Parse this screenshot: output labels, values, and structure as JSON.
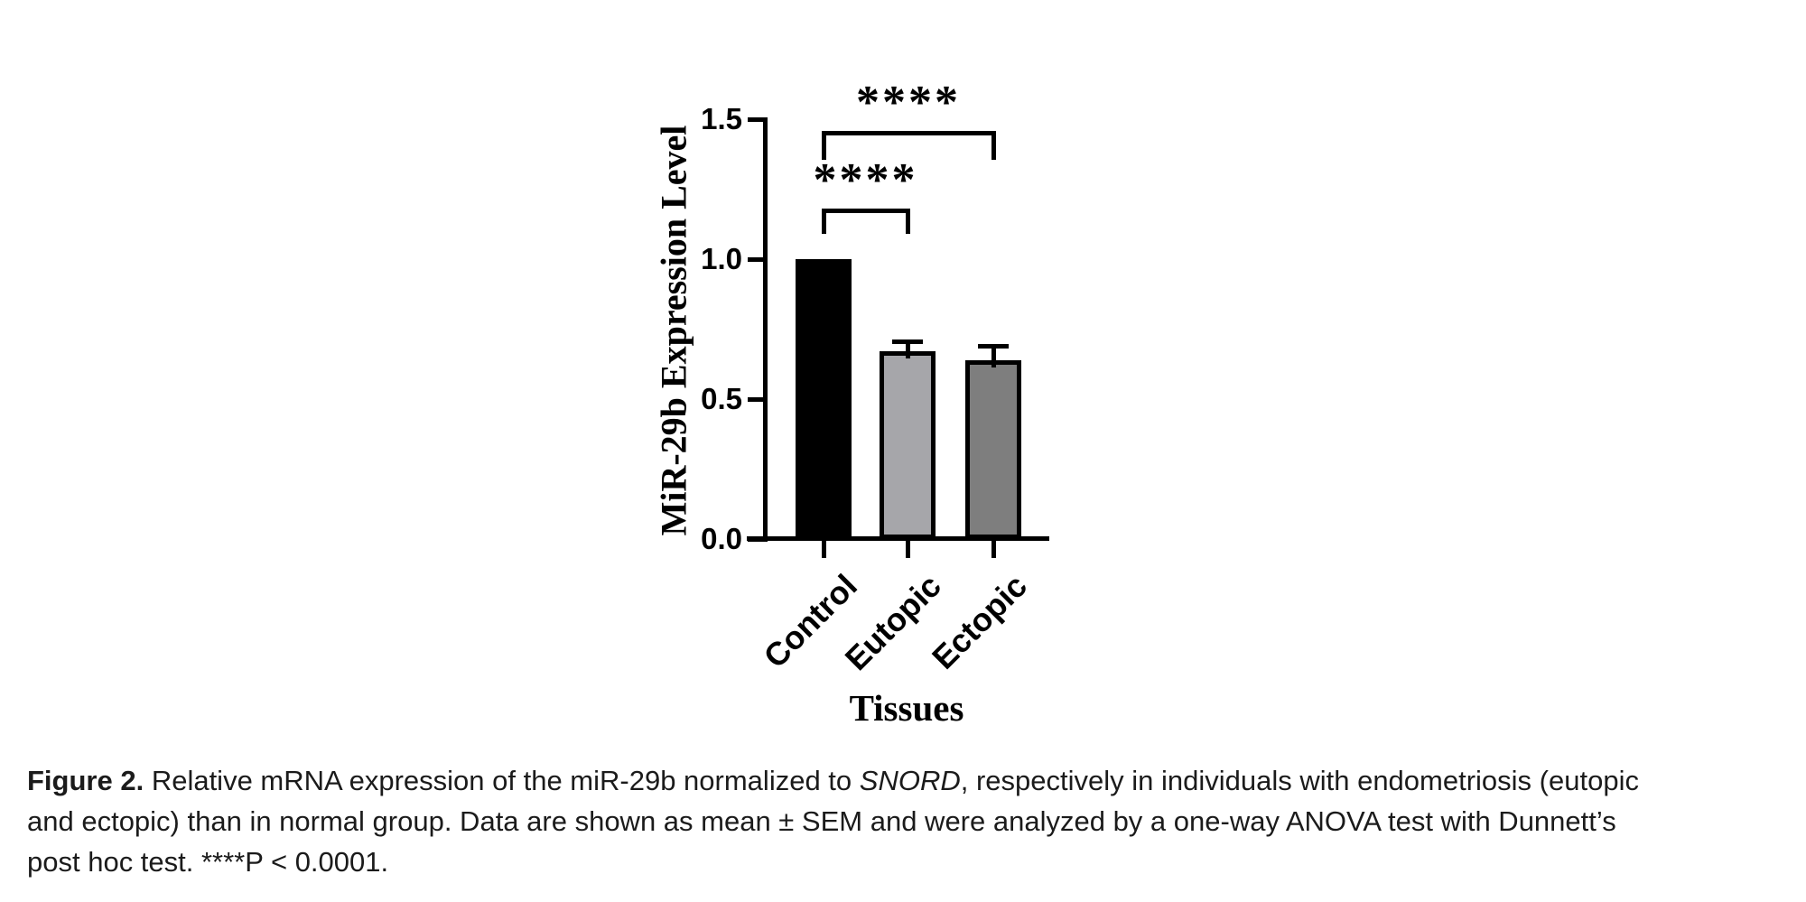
{
  "chart_data": {
    "type": "bar",
    "title": "",
    "xlabel": "Tissues",
    "ylabel": "MiR-29b Expression Level",
    "categories": [
      "Control",
      "Eutopic",
      "Ectopic"
    ],
    "values": [
      1.0,
      0.67,
      0.64
    ],
    "sem_upper": [
      0,
      0.042,
      0.057
    ],
    "bar_colors": [
      "#000000",
      "#a6a6aa",
      "#7e7e7e"
    ],
    "axis_color": "#000000",
    "ylim": [
      0,
      1.5
    ],
    "yticks": [
      {
        "v": 0.0,
        "label": "0.0"
      },
      {
        "v": 0.5,
        "label": "0.5"
      },
      {
        "v": 1.0,
        "label": "1.0"
      },
      {
        "v": 1.5,
        "label": "1.5"
      }
    ],
    "grid": false,
    "legend": "none",
    "error_bars": "mean + SEM, upper whisker only on Eutopic and Ectopic",
    "significance": [
      {
        "from": "Control",
        "to": "Eutopic",
        "label": "****"
      },
      {
        "from": "Control",
        "to": "Ectopic",
        "label": "****"
      }
    ]
  },
  "figure": {
    "caption": {
      "lines": [
        [
          {
            "t": "Figure 2.",
            "b": true
          },
          {
            "t": " Relative mRNA expression of the miR-29b normalized to "
          },
          {
            "t": "SNORD",
            "i": true
          },
          {
            "t": ", respectively in individuals with endometriosis (eutopic"
          }
        ],
        [
          {
            "t": "and ectopic) than in normal group. Data are shown as mean ± SEM and were analyzed by a one-way ANOVA test with Dunnett’s"
          }
        ],
        [
          {
            "t": "post hoc test. ****P < 0.0001."
          }
        ]
      ]
    }
  }
}
